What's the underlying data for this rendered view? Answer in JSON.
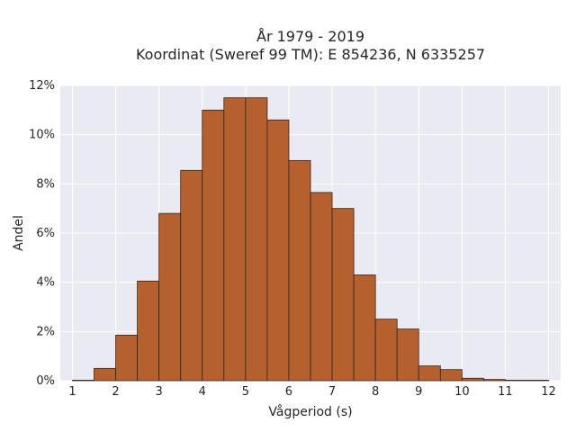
{
  "chart_data": {
    "type": "bar",
    "subtype": "histogram",
    "title_line1": "År 1979 - 2019",
    "title_line2": "Koordinat (Sweref 99 TM): E 854236, N 6335257",
    "xlabel": "Vågperiod (s)",
    "ylabel": "Andel",
    "xlim": [
      0.72,
      12.28
    ],
    "ylim": [
      0,
      12
    ],
    "x_ticks": [
      1,
      2,
      3,
      4,
      5,
      6,
      7,
      8,
      9,
      10,
      11,
      12
    ],
    "y_ticks": [
      0,
      2,
      4,
      6,
      8,
      10,
      12
    ],
    "y_tick_suffix": "%",
    "bin_width": 0.5,
    "bins": [
      {
        "start": 1.0,
        "value": 0.02
      },
      {
        "start": 1.5,
        "value": 0.5
      },
      {
        "start": 2.0,
        "value": 1.85
      },
      {
        "start": 2.5,
        "value": 4.05
      },
      {
        "start": 3.0,
        "value": 6.8
      },
      {
        "start": 3.5,
        "value": 8.55
      },
      {
        "start": 4.0,
        "value": 11.0
      },
      {
        "start": 4.5,
        "value": 11.5
      },
      {
        "start": 5.0,
        "value": 11.5
      },
      {
        "start": 5.5,
        "value": 10.6
      },
      {
        "start": 6.0,
        "value": 8.95
      },
      {
        "start": 6.5,
        "value": 7.65
      },
      {
        "start": 7.0,
        "value": 7.0
      },
      {
        "start": 7.5,
        "value": 4.3
      },
      {
        "start": 8.0,
        "value": 2.5
      },
      {
        "start": 8.5,
        "value": 2.1
      },
      {
        "start": 9.0,
        "value": 0.6
      },
      {
        "start": 9.5,
        "value": 0.45
      },
      {
        "start": 10.0,
        "value": 0.1
      },
      {
        "start": 10.5,
        "value": 0.05
      },
      {
        "start": 11.0,
        "value": 0.02
      },
      {
        "start": 11.5,
        "value": 0.02
      }
    ],
    "grid": true,
    "colors": {
      "bar_fill": "#b5612f",
      "bar_stroke": "#3d2014",
      "plot_background": "#eaeaf2",
      "grid": "#ffffff",
      "text": "#262626"
    }
  }
}
